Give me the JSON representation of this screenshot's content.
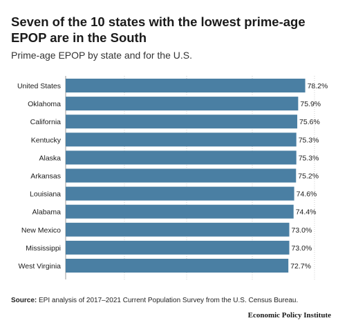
{
  "chart_data": {
    "type": "bar",
    "orientation": "horizontal",
    "title": "Seven of the 10 states with the lowest prime-age EPOP are in the South",
    "subtitle": "Prime-age EPOP by state and for the U.S.",
    "categories": [
      "United States",
      "Oklahoma",
      "California",
      "Kentucky",
      "Alaska",
      "Arkansas",
      "Louisiana",
      "Alabama",
      "New Mexico",
      "Mississippi",
      "West Virginia"
    ],
    "values": [
      78.2,
      75.9,
      75.6,
      75.3,
      75.3,
      75.2,
      74.6,
      74.4,
      73.0,
      73.0,
      72.7
    ],
    "value_labels": [
      "78.2%",
      "75.9%",
      "75.6%",
      "75.3%",
      "75.3%",
      "75.2%",
      "74.6%",
      "74.4%",
      "73.0%",
      "73.0%",
      "72.7%"
    ],
    "xlim": [
      0,
      88
    ],
    "grid": "vertical-dotted",
    "bar_color": "#4a7fa3"
  },
  "source": {
    "label": "Source:",
    "text": " EPI analysis of 2017–2021 Current Population Survey from the U.S. Census Bureau."
  },
  "logo_text": "Economic Policy Institute"
}
